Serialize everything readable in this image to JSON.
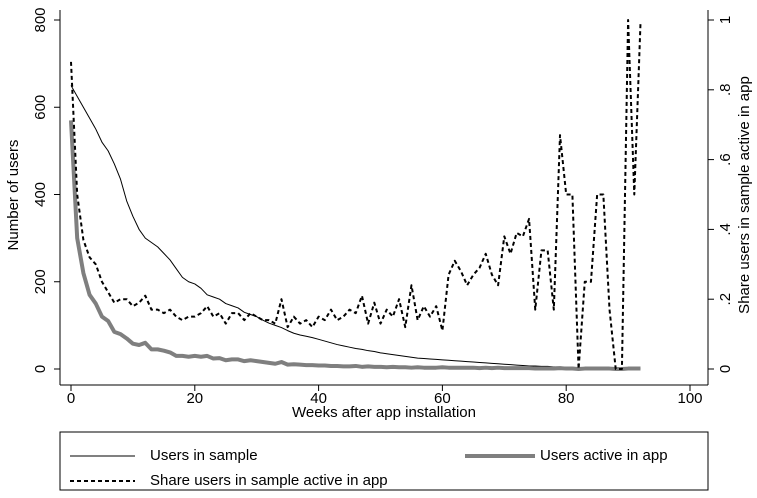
{
  "chart_data": {
    "type": "line",
    "xlabel": "Weeks after app installation",
    "ylabel": "Number of users",
    "y2label": "Share users in sample active in app",
    "x": [
      0,
      1,
      2,
      3,
      4,
      5,
      6,
      7,
      8,
      9,
      10,
      11,
      12,
      13,
      14,
      15,
      16,
      17,
      18,
      19,
      20,
      21,
      22,
      23,
      24,
      25,
      26,
      27,
      28,
      29,
      30,
      31,
      32,
      33,
      34,
      35,
      36,
      37,
      38,
      39,
      40,
      41,
      42,
      43,
      44,
      45,
      46,
      47,
      48,
      49,
      50,
      51,
      52,
      53,
      54,
      55,
      56,
      57,
      58,
      59,
      60,
      61,
      62,
      63,
      64,
      65,
      66,
      67,
      68,
      69,
      70,
      71,
      72,
      73,
      74,
      75,
      76,
      77,
      78,
      79,
      80,
      81,
      82,
      83,
      84,
      85,
      86,
      87,
      88,
      89,
      90,
      91,
      92
    ],
    "series": [
      {
        "name": "Users in sample",
        "color": "#000000",
        "width": 1,
        "dashed": false,
        "values": [
          650,
          625,
          600,
          575,
          550,
          520,
          500,
          470,
          435,
          385,
          350,
          320,
          300,
          290,
          280,
          265,
          250,
          230,
          210,
          200,
          195,
          185,
          170,
          165,
          160,
          150,
          145,
          140,
          130,
          125,
          120,
          112,
          105,
          100,
          95,
          88,
          82,
          78,
          75,
          72,
          68,
          64,
          60,
          56,
          53,
          50,
          47,
          45,
          42,
          40,
          37,
          35,
          33,
          31,
          29,
          27,
          25,
          24,
          23,
          22,
          21,
          20,
          19,
          18,
          17,
          16,
          15,
          14,
          13,
          12,
          11,
          10,
          9,
          8,
          7,
          7,
          6,
          6,
          5,
          5,
          4,
          4,
          3,
          3,
          3,
          3,
          2,
          2,
          2,
          2,
          1,
          1,
          1
        ]
      },
      {
        "name": "Users active in app",
        "color": "#7f7f7f",
        "width": 4,
        "dashed": false,
        "values": [
          570,
          300,
          220,
          170,
          150,
          120,
          110,
          85,
          80,
          70,
          58,
          55,
          60,
          45,
          45,
          42,
          38,
          30,
          30,
          28,
          30,
          28,
          30,
          24,
          25,
          20,
          22,
          22,
          18,
          20,
          18,
          16,
          14,
          12,
          16,
          10,
          11,
          10,
          9,
          9,
          8,
          8,
          7,
          7,
          6,
          6,
          7,
          5,
          6,
          5,
          5,
          4,
          5,
          4,
          4,
          3,
          4,
          3,
          3,
          3,
          4,
          3,
          3,
          3,
          3,
          3,
          2,
          3,
          2,
          3,
          2,
          2,
          2,
          2,
          2,
          1,
          1,
          1,
          1,
          2,
          1,
          1,
          0,
          1,
          1,
          1,
          1,
          1,
          0,
          0,
          1,
          1,
          1
        ]
      },
      {
        "name": "Share users in sample active in app",
        "color": "#000000",
        "width": 2,
        "dashed": true,
        "axis": "y2",
        "values": [
          0.88,
          0.5,
          0.37,
          0.32,
          0.3,
          0.25,
          0.22,
          0.19,
          0.2,
          0.2,
          0.18,
          0.19,
          0.21,
          0.17,
          0.17,
          0.16,
          0.17,
          0.15,
          0.14,
          0.15,
          0.15,
          0.16,
          0.18,
          0.15,
          0.16,
          0.13,
          0.16,
          0.16,
          0.14,
          0.16,
          0.15,
          0.14,
          0.14,
          0.13,
          0.2,
          0.12,
          0.15,
          0.13,
          0.14,
          0.12,
          0.15,
          0.14,
          0.17,
          0.14,
          0.15,
          0.17,
          0.16,
          0.21,
          0.13,
          0.19,
          0.13,
          0.17,
          0.15,
          0.2,
          0.12,
          0.24,
          0.14,
          0.18,
          0.15,
          0.18,
          0.11,
          0.27,
          0.31,
          0.28,
          0.24,
          0.27,
          0.29,
          0.33,
          0.27,
          0.24,
          0.38,
          0.33,
          0.39,
          0.38,
          0.43,
          0.17,
          0.34,
          0.34,
          0.17,
          0.67,
          0.5,
          0.5,
          0,
          0.25,
          0.25,
          0.5,
          0.5,
          0.17,
          0,
          0,
          1,
          0.5,
          0.99
        ]
      }
    ],
    "xlim": [
      0,
      100
    ],
    "xticks": [
      0,
      20,
      40,
      60,
      80,
      100
    ],
    "ylim": [
      0,
      800
    ],
    "yticks": [
      0,
      200,
      400,
      600,
      800
    ],
    "y2lim": [
      0,
      1
    ],
    "y2ticks": [
      0,
      {
        "value": 0.2,
        "label": ".2"
      },
      {
        "value": 0.4,
        "label": ".4"
      },
      {
        "value": 0.6,
        "label": ".6"
      },
      {
        "value": 0.8,
        "label": ".8"
      },
      1
    ],
    "grid": false,
    "legend": "bottom"
  }
}
